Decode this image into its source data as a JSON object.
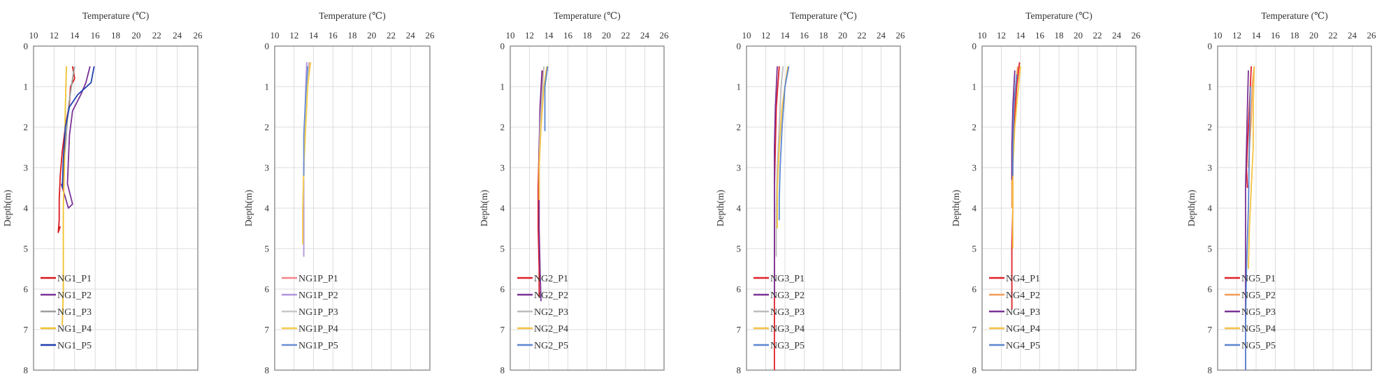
{
  "chart_data": [
    {
      "type": "line",
      "xlabel": "Temperature (℃)",
      "ylabel": "Depth(m)",
      "xlim": [
        10,
        26
      ],
      "ylim": [
        0,
        8
      ],
      "xticks": [
        10,
        12,
        14,
        16,
        18,
        20,
        22,
        24,
        26
      ],
      "yticks": [
        0,
        1,
        2,
        3,
        4,
        5,
        6,
        7,
        8
      ],
      "grid": true,
      "y_inverted": true,
      "x_axis_position": "top",
      "legend_position": "bottom-left",
      "series": [
        {
          "name": "NG1_P1",
          "color": "#d7191c",
          "points": [
            [
              13.8,
              0.5
            ],
            [
              14.0,
              0.8
            ],
            [
              13.6,
              1.0
            ],
            [
              13.5,
              1.4
            ],
            [
              13.1,
              2.0
            ],
            [
              12.8,
              2.6
            ],
            [
              12.6,
              3.2
            ],
            [
              12.5,
              3.8
            ],
            [
              12.5,
              4.3
            ],
            [
              12.4,
              4.6
            ],
            [
              12.6,
              4.45
            ]
          ]
        },
        {
          "name": "NG1_P2",
          "color": "#7b3294",
          "points": [
            [
              15.5,
              0.5
            ],
            [
              15.1,
              0.9
            ],
            [
              14.6,
              1.2
            ],
            [
              13.8,
              1.6
            ],
            [
              13.5,
              2.2
            ],
            [
              13.4,
              2.8
            ],
            [
              13.3,
              3.4
            ],
            [
              13.8,
              3.9
            ],
            [
              13.4,
              4.0
            ],
            [
              12.7,
              3.4
            ]
          ]
        },
        {
          "name": "NG1_P3",
          "color": "#9e9e9e",
          "points": [
            [
              14.0,
              0.5
            ],
            [
              13.8,
              0.8
            ],
            [
              13.4,
              1.5
            ],
            [
              13.1,
              2.5
            ],
            [
              12.9,
              3.0
            ],
            [
              12.9,
              3.5
            ]
          ]
        },
        {
          "name": "NG1_P4",
          "color": "#f0c22c",
          "points": [
            [
              13.2,
              0.5
            ],
            [
              13.1,
              1.5
            ],
            [
              13.0,
              3.0
            ],
            [
              12.9,
              4.0
            ],
            [
              12.9,
              5.0
            ],
            [
              12.9,
              6.0
            ],
            [
              12.8,
              6.9
            ]
          ]
        },
        {
          "name": "NG1_P5",
          "color": "#1f3fb0",
          "points": [
            [
              15.9,
              0.5
            ],
            [
              15.6,
              0.9
            ],
            [
              14.3,
              1.2
            ],
            [
              13.5,
              1.5
            ],
            [
              13.1,
              2.0
            ],
            [
              12.9,
              2.8
            ],
            [
              12.8,
              3.5
            ]
          ]
        }
      ]
    },
    {
      "type": "line",
      "xlabel": "Temperature (℃)",
      "ylabel": "Depth(m)",
      "xlim": [
        10,
        26
      ],
      "ylim": [
        0,
        8
      ],
      "xticks": [
        10,
        12,
        14,
        16,
        18,
        20,
        22,
        24,
        26
      ],
      "yticks": [
        0,
        1,
        2,
        3,
        4,
        5,
        6,
        7,
        8
      ],
      "grid": true,
      "y_inverted": true,
      "x_axis_position": "top",
      "legend_position": "bottom-left",
      "series": [
        {
          "name": "NG1P_P1",
          "color": "#f4838a",
          "points": [
            [
              13.6,
              0.4
            ],
            [
              13.3,
              1.0
            ],
            [
              13.1,
              2.0
            ],
            [
              13.0,
              3.0
            ],
            [
              12.9,
              4.0
            ],
            [
              12.9,
              4.8
            ]
          ]
        },
        {
          "name": "NG1P_P2",
          "color": "#b094dd",
          "points": [
            [
              13.3,
              0.4
            ],
            [
              13.2,
              1.0
            ],
            [
              13.1,
              2.0
            ],
            [
              13.0,
              3.0
            ],
            [
              13.0,
              4.0
            ],
            [
              13.0,
              5.2
            ]
          ]
        },
        {
          "name": "NG1P_P3",
          "color": "#c8c8c8",
          "points": [
            [
              13.5,
              0.4
            ],
            [
              13.3,
              1.2
            ],
            [
              13.1,
              2.2
            ],
            [
              13.0,
              3.3
            ]
          ]
        },
        {
          "name": "NG1P_P4",
          "color": "#f7cf48",
          "points": [
            [
              13.7,
              0.4
            ],
            [
              13.4,
              1.0
            ],
            [
              13.2,
              2.0
            ],
            [
              13.0,
              3.0
            ],
            [
              12.9,
              4.0
            ],
            [
              12.9,
              4.9
            ]
          ]
        },
        {
          "name": "NG1P_P5",
          "color": "#6a8fd6",
          "points": [
            [
              13.4,
              0.5
            ],
            [
              13.2,
              1.2
            ],
            [
              13.0,
              2.2
            ],
            [
              13.0,
              3.2
            ]
          ]
        }
      ]
    },
    {
      "type": "line",
      "xlabel": "Temperature (℃)",
      "ylabel": "Depth(m)",
      "xlim": [
        10,
        26
      ],
      "ylim": [
        0,
        8
      ],
      "xticks": [
        10,
        12,
        14,
        16,
        18,
        20,
        22,
        24,
        26
      ],
      "yticks": [
        0,
        1,
        2,
        3,
        4,
        5,
        6,
        7,
        8
      ],
      "grid": true,
      "y_inverted": true,
      "x_axis_position": "top",
      "legend_position": "bottom-left",
      "series": [
        {
          "name": "NG2_P1",
          "color": "#e0202a",
          "points": [
            [
              13.4,
              0.6
            ],
            [
              13.2,
              1.5
            ],
            [
              13.0,
              2.5
            ],
            [
              12.9,
              3.5
            ],
            [
              12.9,
              4.5
            ],
            [
              13.0,
              5.5
            ],
            [
              13.0,
              6.2
            ]
          ]
        },
        {
          "name": "NG2_P2",
          "color": "#7b3294",
          "points": [
            [
              13.3,
              0.6
            ],
            [
              13.1,
              1.5
            ],
            [
              13.0,
              2.5
            ],
            [
              13.0,
              3.5
            ],
            [
              13.0,
              4.5
            ],
            [
              13.1,
              5.5
            ],
            [
              13.2,
              6.3
            ]
          ]
        },
        {
          "name": "NG2_P3",
          "color": "#bdbdbd",
          "points": [
            [
              13.5,
              0.5
            ],
            [
              13.3,
              1.2
            ],
            [
              13.1,
              2.0
            ],
            [
              13.0,
              3.0
            ]
          ]
        },
        {
          "name": "NG2_P4",
          "color": "#f5c242",
          "points": [
            [
              13.8,
              0.5
            ],
            [
              13.5,
              1.0
            ],
            [
              13.2,
              2.0
            ],
            [
              13.0,
              3.0
            ],
            [
              13.0,
              3.8
            ]
          ]
        },
        {
          "name": "NG2_P5",
          "color": "#5b86d0",
          "points": [
            [
              13.9,
              0.5
            ],
            [
              13.6,
              1.0
            ],
            [
              13.6,
              2.1
            ]
          ]
        }
      ]
    },
    {
      "type": "line",
      "xlabel": "Temperature (℃)",
      "ylabel": "Depth(m)",
      "xlim": [
        10,
        26
      ],
      "ylim": [
        0,
        8
      ],
      "xticks": [
        10,
        12,
        14,
        16,
        18,
        20,
        22,
        24,
        26
      ],
      "yticks": [
        0,
        1,
        2,
        3,
        4,
        5,
        6,
        7,
        8
      ],
      "grid": true,
      "y_inverted": true,
      "x_axis_position": "top",
      "legend_position": "bottom-left",
      "series": [
        {
          "name": "NG3_P1",
          "color": "#e0202a",
          "points": [
            [
              13.4,
              0.5
            ],
            [
              13.1,
              1.5
            ],
            [
              13.0,
              2.5
            ],
            [
              12.9,
              3.5
            ],
            [
              12.9,
              4.5
            ],
            [
              12.9,
              5.5
            ],
            [
              12.9,
              6.5
            ],
            [
              12.9,
              7.5
            ],
            [
              12.9,
              8.0
            ]
          ]
        },
        {
          "name": "NG3_P2",
          "color": "#7b3294",
          "points": [
            [
              13.2,
              0.5
            ],
            [
              13.0,
              1.5
            ],
            [
              12.9,
              2.5
            ],
            [
              12.9,
              3.5
            ],
            [
              12.9,
              4.5
            ],
            [
              12.9,
              5.5
            ],
            [
              12.9,
              6.2
            ]
          ]
        },
        {
          "name": "NG3_P3",
          "color": "#bdbdbd",
          "points": [
            [
              13.8,
              0.5
            ],
            [
              13.6,
              1.0
            ],
            [
              13.4,
              2.0
            ],
            [
              13.2,
              3.0
            ],
            [
              13.1,
              4.0
            ],
            [
              13.1,
              5.2
            ]
          ]
        },
        {
          "name": "NG3_P4",
          "color": "#f5c242",
          "points": [
            [
              14.3,
              0.5
            ],
            [
              14.0,
              1.0
            ],
            [
              13.7,
              1.5
            ],
            [
              13.4,
              2.5
            ],
            [
              13.2,
              3.5
            ],
            [
              13.2,
              4.5
            ]
          ]
        },
        {
          "name": "NG3_P5",
          "color": "#5b86d0",
          "points": [
            [
              14.4,
              0.5
            ],
            [
              14.0,
              1.0
            ],
            [
              13.7,
              2.0
            ],
            [
              13.5,
              3.0
            ],
            [
              13.4,
              3.8
            ],
            [
              13.4,
              4.3
            ]
          ]
        }
      ]
    },
    {
      "type": "line",
      "xlabel": "Temperature (℃)",
      "ylabel": "Depth(m)",
      "xlim": [
        10,
        26
      ],
      "ylim": [
        0,
        8
      ],
      "xticks": [
        10,
        12,
        14,
        16,
        18,
        20,
        22,
        24,
        26
      ],
      "yticks": [
        0,
        1,
        2,
        3,
        4,
        5,
        6,
        7,
        8
      ],
      "grid": true,
      "y_inverted": true,
      "x_axis_position": "top",
      "legend_position": "bottom-left",
      "series": [
        {
          "name": "NG4_P1",
          "color": "#e0202a",
          "points": [
            [
              13.9,
              0.4
            ],
            [
              13.6,
              1.0
            ],
            [
              13.3,
              2.0
            ],
            [
              13.2,
              3.0
            ],
            [
              13.2,
              4.0
            ],
            [
              13.1,
              5.0
            ],
            [
              13.1,
              6.0
            ],
            [
              13.1,
              6.5
            ]
          ]
        },
        {
          "name": "NG4_P2",
          "color": "#f29b55",
          "points": [
            [
              13.7,
              0.5
            ],
            [
              13.4,
              1.2
            ],
            [
              13.2,
              2.2
            ],
            [
              13.1,
              3.2
            ],
            [
              13.1,
              4.0
            ]
          ]
        },
        {
          "name": "NG4_P3",
          "color": "#7b3294",
          "points": [
            [
              13.4,
              0.6
            ],
            [
              13.2,
              1.5
            ],
            [
              13.1,
              2.5
            ],
            [
              13.1,
              3.3
            ]
          ]
        },
        {
          "name": "NG4_P4",
          "color": "#f5c242",
          "points": [
            [
              14.0,
              0.5
            ],
            [
              13.7,
              1.2
            ],
            [
              13.4,
              2.0
            ],
            [
              13.2,
              3.0
            ],
            [
              13.2,
              4.0
            ],
            [
              13.2,
              5.0
            ]
          ]
        },
        {
          "name": "NG4_P5",
          "color": "#5b86d0",
          "points": [
            [
              13.6,
              0.7
            ],
            [
              13.3,
              1.5
            ],
            [
              13.2,
              2.5
            ],
            [
              13.2,
              3.2
            ]
          ]
        }
      ]
    },
    {
      "type": "line",
      "xlabel": "Temperature (℃)",
      "ylabel": "Depth(m)",
      "xlim": [
        10,
        26
      ],
      "ylim": [
        0,
        8
      ],
      "xticks": [
        10,
        12,
        14,
        16,
        18,
        20,
        22,
        24,
        26
      ],
      "yticks": [
        0,
        1,
        2,
        3,
        4,
        5,
        6,
        7,
        8
      ],
      "grid": true,
      "y_inverted": true,
      "x_axis_position": "top",
      "legend_position": "bottom-left",
      "series": [
        {
          "name": "NG5_P1",
          "color": "#e0202a",
          "points": [
            [
              13.5,
              0.5
            ],
            [
              13.4,
              1.0
            ],
            [
              13.3,
              1.5
            ],
            [
              13.2,
              2.0
            ],
            [
              13.1,
              2.5
            ],
            [
              13.0,
              3.0
            ],
            [
              13.1,
              3.5
            ]
          ]
        },
        {
          "name": "NG5_P2",
          "color": "#f29b55",
          "points": [
            [
              13.8,
              0.5
            ],
            [
              13.6,
              1.0
            ],
            [
              13.5,
              1.8
            ],
            [
              13.3,
              2.5
            ],
            [
              13.2,
              3.0
            ]
          ]
        },
        {
          "name": "NG5_P3",
          "color": "#7b3294",
          "points": [
            [
              13.2,
              0.6
            ],
            [
              13.1,
              1.5
            ],
            [
              13.0,
              2.5
            ],
            [
              12.9,
              3.5
            ],
            [
              12.9,
              4.5
            ],
            [
              12.9,
              5.5
            ],
            [
              12.9,
              6.5
            ],
            [
              12.9,
              7.5
            ],
            [
              12.9,
              8.0
            ]
          ]
        },
        {
          "name": "NG5_P4",
          "color": "#f5c242",
          "points": [
            [
              13.8,
              0.5
            ],
            [
              13.7,
              1.5
            ],
            [
              13.7,
              2.5
            ],
            [
              13.5,
              3.5
            ],
            [
              13.3,
              4.5
            ],
            [
              13.2,
              5.5
            ]
          ]
        },
        {
          "name": "NG5_P5",
          "color": "#5b86d0",
          "points": [
            [
              13.4,
              1.0
            ],
            [
              13.3,
              2.5
            ],
            [
              13.2,
              4.0
            ],
            [
              13.0,
              5.5
            ],
            [
              12.9,
              7.0
            ],
            [
              12.9,
              8.0
            ]
          ]
        }
      ]
    }
  ]
}
